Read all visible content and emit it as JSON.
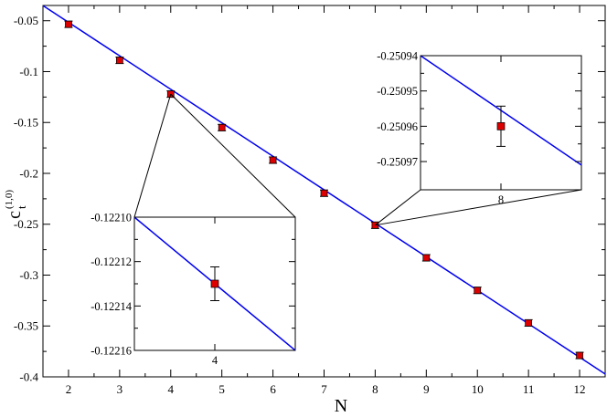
{
  "chart_data": [
    {
      "type": "scatter",
      "title": "",
      "xlabel": "N",
      "ylabel": "c",
      "ylabel_sub": "t",
      "ylabel_sup": "(1,0)",
      "xlim": [
        1.5,
        12.5
      ],
      "ylim": [
        -0.4,
        -0.035
      ],
      "x_ticks": [
        2,
        3,
        4,
        5,
        6,
        7,
        8,
        9,
        10,
        11,
        12
      ],
      "x_tick_labels": [
        "2",
        "3",
        "4",
        "5",
        "6",
        "7",
        "8",
        "9",
        "10",
        "11",
        "12"
      ],
      "y_ticks": [
        -0.05,
        -0.1,
        -0.15,
        -0.2,
        -0.25,
        -0.3,
        -0.35,
        -0.4
      ],
      "y_tick_labels": [
        "-0.05",
        "-0.1",
        "-0.15",
        "-0.2",
        "-0.25",
        "-0.3",
        "-0.35",
        "-0.4"
      ],
      "grid": false,
      "series": [
        {
          "x": [
            2,
            3,
            4,
            5,
            6,
            7,
            8,
            9,
            10,
            11,
            12
          ],
          "y": [
            -0.0535,
            -0.0889,
            -0.1221,
            -0.155,
            -0.187,
            -0.2195,
            -0.25096,
            -0.283,
            -0.315,
            -0.347,
            -0.379
          ],
          "marker": "square",
          "color": "#dd0000"
        }
      ],
      "fit_line": {
        "x": [
          1.5,
          12.5
        ],
        "y": [
          -0.0351,
          -0.3972
        ],
        "color": "#0000ee"
      }
    },
    {
      "type": "scatter",
      "role": "inset-left",
      "xlim": [
        3.2,
        4.8
      ],
      "ylim": [
        -0.12216,
        -0.1221
      ],
      "x_ticks": [
        4
      ],
      "x_tick_labels": [
        "4"
      ],
      "y_ticks": [
        -0.1221,
        -0.12212,
        -0.12214,
        -0.12216
      ],
      "y_tick_labels": [
        "-0.12210",
        "-0.12212",
        "-0.12214",
        "-0.12216"
      ],
      "point": {
        "x": 4.0,
        "y": -0.12213,
        "err": 7.6e-06
      },
      "line": {
        "x": [
          3.2,
          4.8
        ],
        "y": [
          -0.1221,
          -0.12216
        ]
      },
      "zoom_target": {
        "x": 4,
        "y": -0.1221
      }
    },
    {
      "type": "scatter",
      "role": "inset-right",
      "xlim": [
        7.2,
        8.8
      ],
      "ylim": [
        -0.250978,
        -0.25094
      ],
      "x_ticks": [
        8
      ],
      "x_tick_labels": [
        "8"
      ],
      "y_ticks": [
        -0.25094,
        -0.25095,
        -0.25096,
        -0.25097
      ],
      "y_tick_labels": [
        "-0.25094",
        "-0.25095",
        "-0.25096",
        "-0.25097"
      ],
      "point": {
        "x": 8.0,
        "y": -0.25096,
        "err": 5.7e-06
      },
      "line": {
        "x": [
          7.2,
          8.8
        ],
        "y": [
          -0.25094,
          -0.250971
        ]
      },
      "zoom_target": {
        "x": 8,
        "y": -0.25096
      }
    }
  ]
}
